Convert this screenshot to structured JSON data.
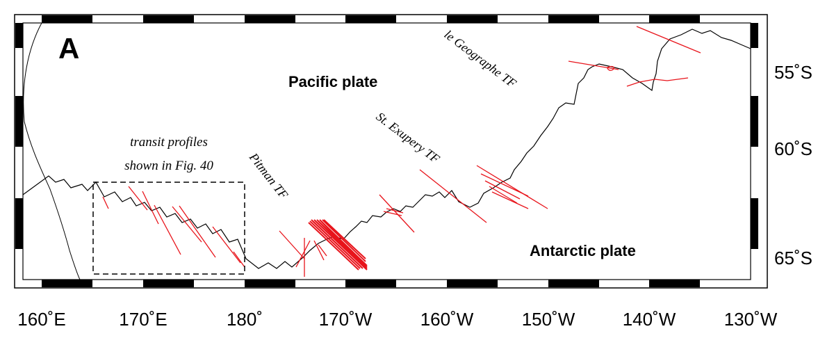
{
  "panel_label": "A",
  "region_labels": {
    "pacific": "Pacific plate",
    "antarctic": "Antarctic plate"
  },
  "fault_labels": {
    "le_geographe": "le Geographe TF",
    "st_exupery": "St. Exupery TF",
    "pitman": "Pitman TF"
  },
  "box_label": {
    "line1": "transit profiles",
    "line2": "shown in Fig. 40"
  },
  "axis": {
    "lon_ticks": [
      "160˚E",
      "170˚E",
      "180˚",
      "170˚W",
      "160˚W",
      "150˚W",
      "140˚W",
      "130˚W"
    ],
    "lat_ticks": [
      "55˚S",
      "60˚S",
      "65˚S"
    ]
  },
  "colors": {
    "ridge": "#000000",
    "profiles": "#e8141b",
    "frame": "#000000"
  }
}
